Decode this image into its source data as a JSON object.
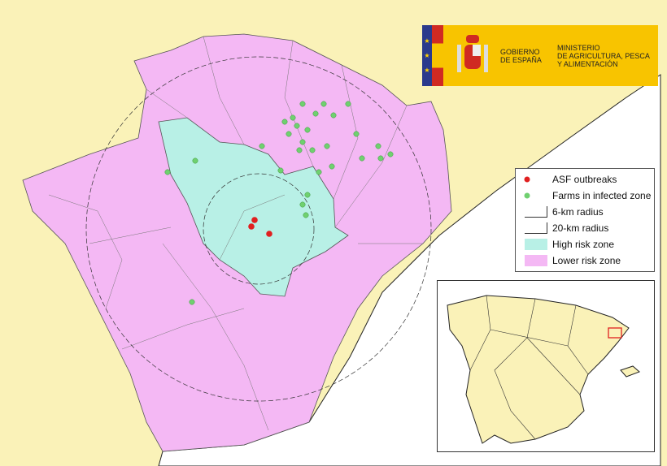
{
  "logo": {
    "line1": "GOBIERNO",
    "line2": "DE ESPAÑA",
    "ministry1": "MINISTERIO",
    "ministry2": "DE AGRICULTURA, PESCA",
    "ministry3": "Y ALIMENTACIÓN",
    "colors": {
      "yellow": "#f8c400",
      "red": "#d02a22",
      "blue": "#2a3a8c"
    }
  },
  "legend": {
    "items": [
      {
        "label": "ASF outbreaks",
        "symbol": "red-dot",
        "color": "#e02020"
      },
      {
        "label": "Farms in infected zone",
        "symbol": "green-dot",
        "color": "#70d070"
      },
      {
        "label": "6-km radius",
        "symbol": "line"
      },
      {
        "label": "20-km radius",
        "symbol": "line"
      },
      {
        "label": "High risk zone",
        "symbol": "swatch",
        "color": "#b8f0e6"
      },
      {
        "label": "Lower risk zone",
        "symbol": "swatch",
        "color": "#f4b8f4"
      }
    ]
  },
  "colors": {
    "land": "#faf2b8",
    "sea": "#ffffff"
  }
}
